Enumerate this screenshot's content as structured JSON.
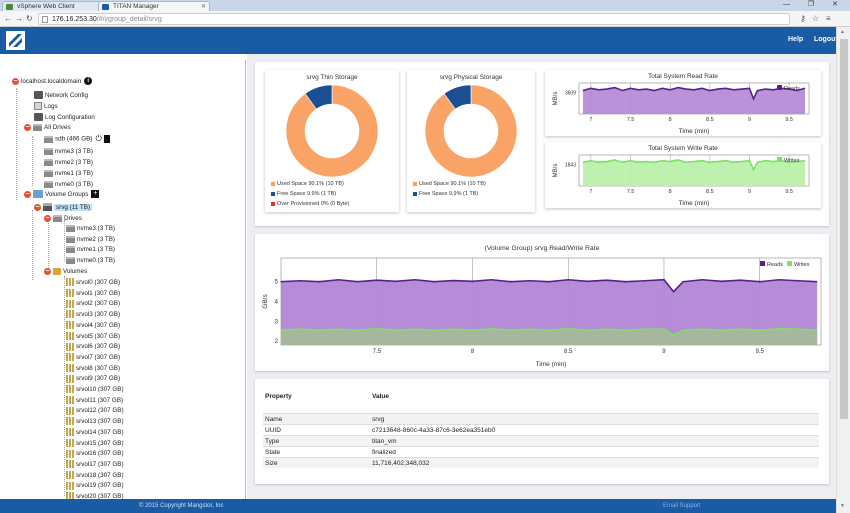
{
  "browser": {
    "tabs": [
      {
        "label": "vSphere Web Client",
        "active": false
      },
      {
        "label": "TITAN Manager",
        "active": true
      }
    ],
    "url_host": "176.16.253.30",
    "url_path": "/#/vgroup_detail/srvg",
    "window_controls": "— ❐ ✕"
  },
  "header": {
    "help": "Help",
    "logout": "Logout"
  },
  "tree": {
    "root": "localhost.localdomain",
    "network_config": "Network Config",
    "logs": "Logs",
    "log_configuration": "Log Configuration",
    "all_drives": "All Drives",
    "drives_all": [
      "sdb (466 GB)",
      "nvme3 (3 TB)",
      "nvme2 (3 TB)",
      "nvme1 (3 TB)",
      "nvme0 (3 TB)"
    ],
    "volume_groups": "Volume Groups",
    "selected_group": "srvg (11 TB)",
    "drives_label": "Drives",
    "group_drives": [
      "nvme3 (3 TB)",
      "nvme2 (3 TB)",
      "nvme1 (3 TB)",
      "nvme0 (3 TB)"
    ],
    "volumes_label": "Volumes",
    "volumes": [
      "srvol0 (307 GB)",
      "srvol1 (307 GB)",
      "srvol2 (307 GB)",
      "srvol3 (307 GB)",
      "srvol4 (307 GB)",
      "srvol5 (307 GB)",
      "srvol6 (307 GB)",
      "srvol7 (307 GB)",
      "srvol8 (307 GB)",
      "srvol9 (307 GB)",
      "srvol10 (307 GB)",
      "srvol11 (307 GB)",
      "srvol12 (307 GB)",
      "srvol13 (307 GB)",
      "srvol14 (307 GB)",
      "srvol15 (307 GB)",
      "srvol16 (307 GB)",
      "srvol17 (307 GB)",
      "srvol18 (307 GB)",
      "srvol19 (307 GB)",
      "srvol20 (307 GB)"
    ]
  },
  "colors": {
    "used": "#f9a466",
    "free": "#1b4f93",
    "over": "#e03131",
    "reads_fill": "#b286d6",
    "reads_line": "#5a1f8a",
    "writes_fill": "#b7f0a7",
    "writes_line": "#7ee064",
    "brand": "#1a5ba6"
  },
  "chart_data": [
    {
      "type": "pie",
      "title": "srvg Thin Storage",
      "values": [
        90.1,
        9.9,
        0
      ],
      "legend": [
        "Used Space 90.1% (10 TB)",
        "Free Space 9.9% (1 TB)",
        "Over Provisioned 0% (0 Byte)"
      ]
    },
    {
      "type": "pie",
      "title": "srvg Physical Storage",
      "values": [
        90.1,
        9.9
      ],
      "legend": [
        "Used Space 90.1% (10 TB)",
        "Free Space 9.9% (1 TB)"
      ]
    },
    {
      "type": "area",
      "title": "Total System Read Rate",
      "xlabel": "Time (min)",
      "ylabel": "MB/s",
      "xticks": [
        "7",
        "7.5",
        "8",
        "8.5",
        "9",
        "9.5"
      ],
      "ytick": "3609",
      "legend": [
        "Reads"
      ],
      "x": [
        6.9,
        7.0,
        7.1,
        7.2,
        7.3,
        7.4,
        7.5,
        7.6,
        7.7,
        7.8,
        7.9,
        8.0,
        8.1,
        8.2,
        8.3,
        8.4,
        8.5,
        8.6,
        8.7,
        8.8,
        8.9,
        9.0,
        9.05,
        9.1,
        9.2,
        9.3,
        9.4,
        9.5,
        9.6,
        9.7
      ],
      "y": [
        3609,
        3612,
        3610,
        3611,
        3613,
        3609,
        3612,
        3610,
        3611,
        3609,
        3612,
        3610,
        3613,
        3611,
        3610,
        3612,
        3609,
        3611,
        3612,
        3610,
        3611,
        3612,
        3598,
        3609,
        3611,
        3610,
        3612,
        3611,
        3609,
        3612
      ]
    },
    {
      "type": "area",
      "title": "Total System Write Rate",
      "xlabel": "Time (min)",
      "ylabel": "MB/s",
      "xticks": [
        "7",
        "7.5",
        "8",
        "8.5",
        "9",
        "9.5"
      ],
      "ytick": "1843",
      "legend": [
        "Writes"
      ],
      "x": [
        6.9,
        7.0,
        7.1,
        7.2,
        7.3,
        7.4,
        7.5,
        7.6,
        7.7,
        7.8,
        7.9,
        8.0,
        8.1,
        8.2,
        8.3,
        8.4,
        8.5,
        8.6,
        8.7,
        8.8,
        8.9,
        9.0,
        9.05,
        9.1,
        9.2,
        9.3,
        9.4,
        9.5,
        9.6,
        9.7
      ],
      "y": [
        1843,
        1845,
        1843,
        1844,
        1846,
        1843,
        1845,
        1843,
        1844,
        1843,
        1845,
        1844,
        1846,
        1843,
        1844,
        1845,
        1843,
        1844,
        1845,
        1843,
        1844,
        1845,
        1834,
        1843,
        1845,
        1844,
        1845,
        1843,
        1844,
        1845
      ]
    },
    {
      "type": "area",
      "title": "(Volume Group) srvg Read/Write Rate",
      "xlabel": "Time (min)",
      "ylabel": "GB/s",
      "xticks": [
        "7.5",
        "8",
        "8.5",
        "9",
        "9.5"
      ],
      "yticks": [
        "2",
        "3",
        "4",
        "5"
      ],
      "ylim": [
        1.8,
        6.2
      ],
      "legend": [
        "Reads",
        "Writes"
      ],
      "x": [
        7.0,
        7.1,
        7.2,
        7.3,
        7.4,
        7.5,
        7.6,
        7.7,
        7.8,
        7.9,
        8.0,
        8.1,
        8.2,
        8.3,
        8.4,
        8.5,
        8.6,
        8.7,
        8.8,
        8.9,
        9.0,
        9.05,
        9.1,
        9.2,
        9.3,
        9.4,
        9.5,
        9.6,
        9.7,
        9.8
      ],
      "series": [
        {
          "name": "Reads",
          "values": [
            5.0,
            5.05,
            5.0,
            5.1,
            5.0,
            5.08,
            5.02,
            5.1,
            5.0,
            5.06,
            5.02,
            5.1,
            5.0,
            5.05,
            5.0,
            5.1,
            5.02,
            5.08,
            5.0,
            5.05,
            5.1,
            4.5,
            5.0,
            5.1,
            5.02,
            5.08,
            5.0,
            5.1,
            5.05,
            5.0
          ]
        },
        {
          "name": "Writes",
          "values": [
            2.55,
            2.6,
            2.55,
            2.6,
            2.55,
            2.62,
            2.55,
            2.6,
            2.55,
            2.6,
            2.55,
            2.62,
            2.55,
            2.6,
            2.55,
            2.62,
            2.55,
            2.6,
            2.55,
            2.6,
            2.6,
            2.3,
            2.55,
            2.6,
            2.55,
            2.6,
            2.55,
            2.62,
            2.6,
            2.55
          ]
        }
      ]
    }
  ],
  "properties": {
    "header": {
      "key": "Property",
      "value": "Value"
    },
    "rows": [
      {
        "key": "Name",
        "value": "srvg"
      },
      {
        "key": "UUID",
        "value": "c7213648-860c-4a33-87c6-3e62ea351eb0"
      },
      {
        "key": "Type",
        "value": "titan_vm"
      },
      {
        "key": "State",
        "value": "finalized"
      },
      {
        "key": "Size",
        "value": "11,716,402,348,032"
      }
    ]
  },
  "footer": {
    "copyright": "© 2015 Copyright Mangstor, Inc",
    "email": "Email Support"
  }
}
